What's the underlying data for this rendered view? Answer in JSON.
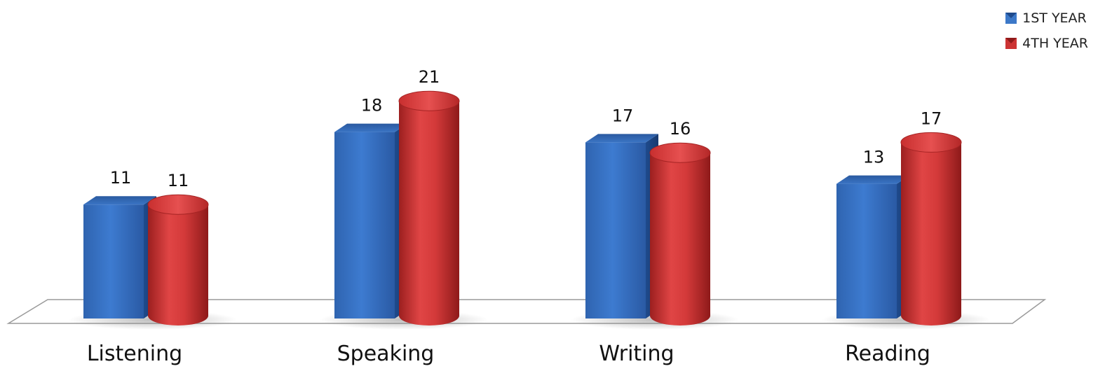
{
  "chart_data": {
    "type": "bar",
    "categories": [
      "Listening",
      "Speaking",
      "Writing",
      "Reading"
    ],
    "series": [
      {
        "name": "1ST YEAR",
        "values": [
          11,
          18,
          17,
          13
        ],
        "color": "#3c78c8",
        "shape": "box"
      },
      {
        "name": "4TH YEAR",
        "values": [
          11,
          21,
          16,
          17
        ],
        "color": "#cc3333",
        "shape": "cylinder"
      }
    ],
    "ylim": [
      0,
      25
    ],
    "grid": false,
    "legend_position": "top-right",
    "data_labels": true
  }
}
